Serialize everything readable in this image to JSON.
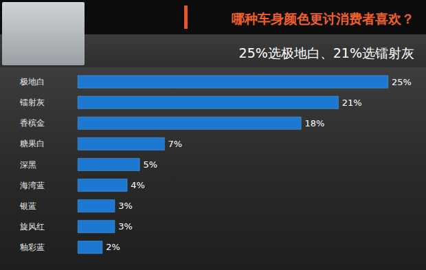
{
  "chart_data": {
    "type": "bar",
    "orientation": "horizontal",
    "title": "哪种车身颜色更讨消费者喜欢？",
    "subtitle": "25%选极地白、21%选镭射灰",
    "categories": [
      "极地白",
      "镭射灰",
      "香槟金",
      "糖果白",
      "深黑",
      "海湾蓝",
      "银蓝",
      "旋风红",
      "釉彩蓝"
    ],
    "values": [
      25,
      21,
      18,
      7,
      5,
      4,
      3,
      3,
      2
    ],
    "value_labels": [
      "25%",
      "21%",
      "18%",
      "7%",
      "5%",
      "4%",
      "3%",
      "3%",
      "2%"
    ],
    "color": "#1c78d0",
    "xlim": [
      0,
      25
    ],
    "grid": false,
    "data_labels": true,
    "tick_labels": "y"
  }
}
